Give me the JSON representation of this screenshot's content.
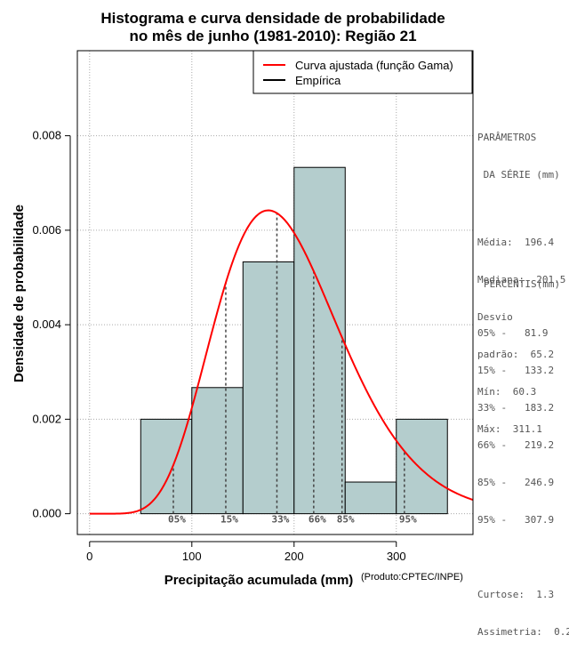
{
  "chart_data": {
    "type": "bar",
    "title_lines": [
      "Histograma e curva densidade de probabilidade",
      "no mês de junho (1981-2010): Região 21"
    ],
    "xlabel": "Precipitação acumulada (mm)",
    "ylabel": "Densidade de probabilidade",
    "credit": "(Produto:CPTEC/INPE)",
    "xlim": [
      -12,
      375
    ],
    "ylim": [
      -0.00044,
      0.0098
    ],
    "x_ticks": [
      0,
      100,
      200,
      300
    ],
    "y_ticks": [
      0.0,
      0.002,
      0.004,
      0.006,
      0.008
    ],
    "y_tick_labels": [
      "0.000",
      "0.002",
      "0.004",
      "0.006",
      "0.008"
    ],
    "grid": true,
    "bins": [
      {
        "from": 50,
        "to": 100,
        "density": 0.002
      },
      {
        "from": 100,
        "to": 150,
        "density": 0.00267
      },
      {
        "from": 150,
        "to": 200,
        "density": 0.00533
      },
      {
        "from": 200,
        "to": 250,
        "density": 0.00733
      },
      {
        "from": 250,
        "to": 300,
        "density": 0.00067
      },
      {
        "from": 300,
        "to": 350,
        "density": 0.002
      }
    ],
    "fitted_curve": {
      "name": "Curva ajustada (função Gama)",
      "distribution": "gamma",
      "mean": 196.4,
      "sd": 65.2,
      "color": "#ff0000"
    },
    "empirical": {
      "name": "Empírica",
      "color": "#000000"
    },
    "percentiles": [
      {
        "label": "05%",
        "value": 81.9
      },
      {
        "label": "15%",
        "value": 133.2
      },
      {
        "label": "33%",
        "value": 183.2
      },
      {
        "label": "66%",
        "value": 219.2
      },
      {
        "label": "85%",
        "value": 246.9
      },
      {
        "label": "95%",
        "value": 307.9
      }
    ],
    "legend_position": "top-right",
    "bar_fill": "#b4cdcd"
  },
  "sidebar": {
    "params_title": [
      "PARÂMETROS",
      " DA SÉRIE (mm)"
    ],
    "params": [
      "Média:  196.4",
      "Mediana:  201.5",
      "Desvio",
      "padrão:  65.2",
      "Mín:  60.3",
      "Máx:  311.1"
    ],
    "percentis_title": "PERCENTIS(mm)",
    "percentis": [
      "05% -   81.9",
      "15% -   133.2",
      "33% -   183.2",
      "66% -   219.2",
      "85% -   246.9",
      "95% -   307.9"
    ],
    "stats": [
      "Curtose:  1.3",
      "Assimetria:  0.2"
    ]
  }
}
